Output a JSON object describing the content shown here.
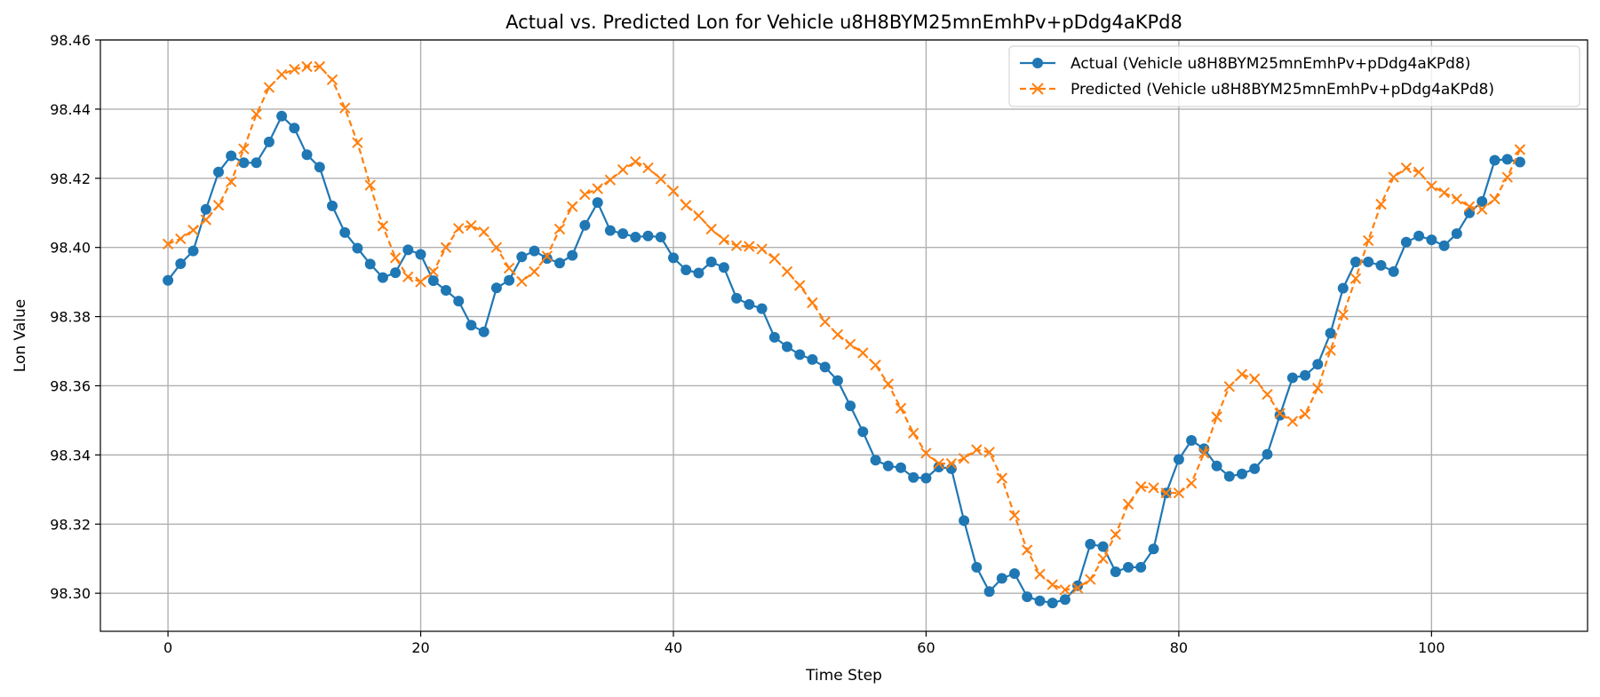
{
  "chart_data": {
    "type": "line",
    "title": "Actual vs. Predicted Lon for Vehicle u8H8BYM25mnEmhPv+pDdg4aKPd8",
    "xlabel": "Time Step",
    "ylabel": "Lon Value",
    "xlim": [
      -5.35,
      112.35
    ],
    "ylim": [
      98.289,
      98.46
    ],
    "xticks": [
      0,
      20,
      40,
      60,
      80,
      100
    ],
    "yticks": [
      98.3,
      98.32,
      98.34,
      98.36,
      98.38,
      98.4,
      98.42,
      98.44,
      98.46
    ],
    "grid": true,
    "legend_position": "top-right",
    "series": [
      {
        "name": "Actual (Vehicle u8H8BYM25mnEmhPv+pDdg4aKPd8)",
        "color": "#1f77b4",
        "style": "solid",
        "marker": "circle",
        "values": [
          98.3905,
          98.3953,
          98.399,
          98.411,
          98.4218,
          98.4265,
          98.4245,
          98.4245,
          98.4305,
          98.438,
          98.4345,
          98.4268,
          98.4232,
          98.412,
          98.4043,
          98.3998,
          98.3952,
          98.3913,
          98.3927,
          98.3993,
          98.398,
          98.3904,
          98.3876,
          98.3845,
          98.3775,
          98.3756,
          98.3883,
          98.3905,
          98.3973,
          98.399,
          98.3968,
          98.3955,
          98.3977,
          98.4064,
          98.413,
          98.4049,
          98.404,
          98.403,
          98.4033,
          98.403,
          98.397,
          98.3935,
          98.3926,
          98.3958,
          98.3942,
          98.3853,
          98.3835,
          98.3823,
          98.374,
          98.3713,
          98.369,
          98.3676,
          98.3654,
          98.3615,
          98.3542,
          98.3467,
          98.3385,
          98.3368,
          98.3363,
          98.3335,
          98.3333,
          98.3365,
          98.336,
          98.321,
          98.3075,
          98.3005,
          98.3043,
          98.3057,
          98.299,
          98.2978,
          98.2972,
          98.2982,
          98.3022,
          98.3142,
          98.3135,
          98.3062,
          98.3075,
          98.3075,
          98.3128,
          98.329,
          98.3387,
          98.3442,
          98.3418,
          98.3368,
          98.3338,
          98.3345,
          98.336,
          98.3402,
          98.3515,
          98.3623,
          98.363,
          98.3662,
          98.3752,
          98.3882,
          98.3958,
          98.3958,
          98.3948,
          98.393,
          98.4015,
          98.4033,
          98.4022,
          98.4005,
          98.404,
          98.41,
          98.4133,
          98.4252,
          98.4255,
          98.4247
        ]
      },
      {
        "name": "Predicted (Vehicle u8H8BYM25mnEmhPv+pDdg4aKPd8)",
        "color": "#ff7f0e",
        "style": "dashed",
        "marker": "x",
        "values": [
          98.401,
          98.4025,
          98.405,
          98.408,
          98.4122,
          98.419,
          98.4285,
          98.4385,
          98.4463,
          98.45,
          98.4515,
          98.4523,
          98.4523,
          98.4485,
          98.4403,
          98.4303,
          98.418,
          98.4062,
          98.397,
          98.3915,
          98.39,
          98.393,
          98.4,
          98.4055,
          98.4063,
          98.4045,
          98.4,
          98.394,
          98.3902,
          98.393,
          98.3975,
          98.4053,
          98.4118,
          98.4153,
          98.417,
          98.4195,
          98.4225,
          98.4248,
          98.423,
          98.4198,
          98.4163,
          98.4122,
          98.4092,
          98.4053,
          98.4022,
          98.4005,
          98.4003,
          98.3995,
          98.3968,
          98.393,
          98.389,
          98.384,
          98.3785,
          98.3748,
          98.372,
          98.3695,
          98.366,
          98.3605,
          98.3535,
          98.3463,
          98.3405,
          98.3375,
          98.3375,
          98.339,
          98.3415,
          98.3408,
          98.3333,
          98.3225,
          98.3125,
          98.3055,
          98.3025,
          98.301,
          98.3015,
          98.304,
          98.31,
          98.317,
          98.3258,
          98.3308,
          98.3305,
          98.329,
          98.329,
          98.3318,
          98.3405,
          98.351,
          98.3598,
          98.3633,
          98.362,
          98.3575,
          98.352,
          98.3497,
          98.3518,
          98.3593,
          98.3703,
          98.3805,
          98.391,
          98.402,
          98.4125,
          98.4203,
          98.423,
          98.4218,
          98.4178,
          98.4158,
          98.414,
          98.4118,
          98.411,
          98.414,
          98.4203,
          98.4283
        ]
      }
    ]
  }
}
